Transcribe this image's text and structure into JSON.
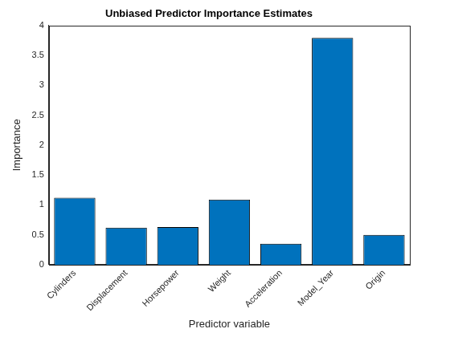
{
  "chart_data": {
    "type": "bar",
    "title": "Unbiased Predictor Importance Estimates",
    "x_label": "Predictor variable",
    "y_label": "Importance",
    "categories": [
      "Cylinders",
      "Displacement",
      "Horsepower",
      "Weight",
      "Acceleration",
      "Model_Year",
      "Origin"
    ],
    "values": [
      1.12,
      0.62,
      0.63,
      1.09,
      0.35,
      3.79,
      0.5
    ],
    "color": "#0072bd",
    "ylim": [
      0,
      4
    ],
    "yticks": [
      0,
      0.5,
      1,
      1.5,
      2,
      2.5,
      3,
      3.5,
      4
    ],
    "grid": false
  }
}
